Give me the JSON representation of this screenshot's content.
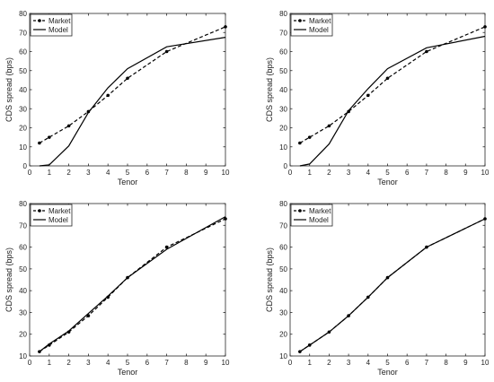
{
  "colors": {
    "axis": "#262626",
    "series": "#000000",
    "background": "#ffffff"
  },
  "chart_data": [
    {
      "type": "line",
      "xlabel": "Tenor",
      "ylabel": "CDS spread (bps)",
      "xlim": [
        0,
        10
      ],
      "ylim": [
        0,
        80
      ],
      "xticks": [
        0,
        1,
        2,
        3,
        4,
        5,
        6,
        7,
        8,
        9,
        10
      ],
      "yticks": [
        0,
        10,
        20,
        30,
        40,
        50,
        60,
        70,
        80
      ],
      "grid": false,
      "legend_position": "top-left",
      "series": [
        {
          "name": "Market",
          "style": "dashed-marker",
          "x": [
            0.5,
            1,
            2,
            3,
            4,
            5,
            7,
            10
          ],
          "y": [
            12,
            15,
            21,
            28.5,
            37,
            46,
            60,
            73
          ]
        },
        {
          "name": "Model",
          "style": "solid",
          "x": [
            0.5,
            1,
            2,
            3,
            4,
            5,
            7,
            10
          ],
          "y": [
            0,
            0.5,
            10.5,
            28,
            41,
            51,
            62.5,
            67.5
          ]
        }
      ]
    },
    {
      "type": "line",
      "xlabel": "Tenor",
      "ylabel": "CDS spread (bps)",
      "xlim": [
        0,
        10
      ],
      "ylim": [
        0,
        80
      ],
      "xticks": [
        0,
        1,
        2,
        3,
        4,
        5,
        6,
        7,
        8,
        9,
        10
      ],
      "yticks": [
        0,
        10,
        20,
        30,
        40,
        50,
        60,
        70,
        80
      ],
      "grid": false,
      "legend_position": "top-left",
      "series": [
        {
          "name": "Market",
          "style": "dashed-marker",
          "x": [
            0.5,
            1,
            2,
            3,
            4,
            5,
            7,
            10
          ],
          "y": [
            12,
            15,
            21,
            28.5,
            37,
            46,
            60,
            73
          ]
        },
        {
          "name": "Model",
          "style": "solid",
          "x": [
            0.5,
            1,
            2,
            3,
            4,
            5,
            7,
            10
          ],
          "y": [
            0,
            1,
            11.5,
            29,
            40.5,
            51,
            62,
            68
          ]
        }
      ]
    },
    {
      "type": "line",
      "xlabel": "Tenor",
      "ylabel": "CDS spread (bps)",
      "xlim": [
        0,
        10
      ],
      "ylim": [
        10,
        80
      ],
      "xticks": [
        0,
        1,
        2,
        3,
        4,
        5,
        6,
        7,
        8,
        9,
        10
      ],
      "yticks": [
        10,
        20,
        30,
        40,
        50,
        60,
        70,
        80
      ],
      "grid": false,
      "legend_position": "top-left",
      "series": [
        {
          "name": "Market",
          "style": "dashed-marker",
          "x": [
            0.5,
            1,
            2,
            3,
            4,
            5,
            7,
            10
          ],
          "y": [
            12,
            15,
            21,
            28.5,
            37,
            46,
            60,
            73
          ]
        },
        {
          "name": "Model",
          "style": "solid",
          "x": [
            0.5,
            1,
            2,
            3,
            4,
            5,
            7,
            10
          ],
          "y": [
            12,
            15.5,
            21.5,
            29.5,
            37.5,
            46,
            59,
            74
          ]
        }
      ]
    },
    {
      "type": "line",
      "xlabel": "Tenor",
      "ylabel": "CDS spread (bps)",
      "xlim": [
        0,
        10
      ],
      "ylim": [
        10,
        80
      ],
      "xticks": [
        0,
        1,
        2,
        3,
        4,
        5,
        6,
        7,
        8,
        9,
        10
      ],
      "yticks": [
        10,
        20,
        30,
        40,
        50,
        60,
        70,
        80
      ],
      "grid": false,
      "legend_position": "top-left",
      "series": [
        {
          "name": "Market",
          "style": "dashed-marker",
          "x": [
            0.5,
            1,
            2,
            3,
            4,
            5,
            7,
            10
          ],
          "y": [
            12,
            15,
            21,
            28.5,
            37,
            46,
            60,
            73
          ]
        },
        {
          "name": "Model",
          "style": "solid",
          "x": [
            0.5,
            1,
            2,
            3,
            4,
            5,
            7,
            10
          ],
          "y": [
            12,
            15,
            21,
            28.5,
            37,
            46,
            60,
            73
          ]
        }
      ]
    }
  ]
}
